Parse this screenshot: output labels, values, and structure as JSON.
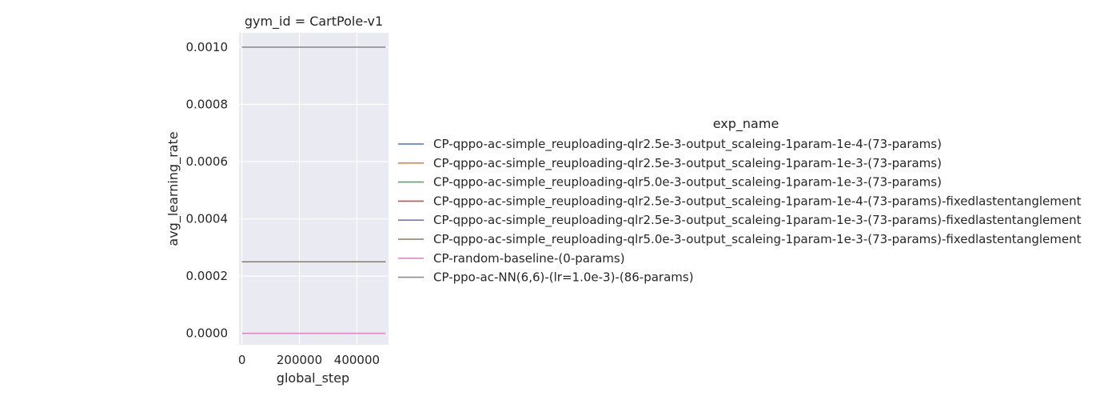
{
  "chart_data": {
    "type": "line",
    "title": "gym_id = CartPole-v1",
    "xlabel": "global_step",
    "ylabel": "avg_learning_rate",
    "xlim": [
      -10000,
      510000
    ],
    "ylim": [
      -4e-05,
      0.00105
    ],
    "xticks": [
      0,
      200000,
      400000
    ],
    "xtick_labels": [
      "0",
      "200000",
      "400000"
    ],
    "yticks": [
      0.0,
      0.0002,
      0.0004,
      0.0006,
      0.0008,
      0.001
    ],
    "ytick_labels": [
      "0.0000",
      "0.0002",
      "0.0004",
      "0.0006",
      "0.0008",
      "0.0010"
    ],
    "grid": true,
    "legend_title": "exp_name",
    "legend_placement": "right",
    "background_color": "#eaeaf2",
    "grid_color": "#ffffff",
    "series": [
      {
        "name": "CP-qppo-ac-simple_reuploading-qlr2.5e-3-output_scaleing-1param-1e-4-(73-params)",
        "color": "#4c72b0",
        "x": [
          0,
          500000
        ],
        "y": [
          0.00025,
          0.00025
        ]
      },
      {
        "name": "CP-qppo-ac-simple_reuploading-qlr2.5e-3-output_scaleing-1param-1e-3-(73-params)",
        "color": "#dd8452",
        "x": [
          0,
          500000
        ],
        "y": [
          0.00025,
          0.00025
        ]
      },
      {
        "name": "CP-qppo-ac-simple_reuploading-qlr5.0e-3-output_scaleing-1param-1e-3-(73-params)",
        "color": "#55a868",
        "x": [
          0,
          500000
        ],
        "y": [
          0.00025,
          0.00025
        ]
      },
      {
        "name": "CP-qppo-ac-simple_reuploading-qlr2.5e-3-output_scaleing-1param-1e-4-(73-params)-fixedlastentanglement",
        "color": "#c44e52",
        "x": [
          0,
          500000
        ],
        "y": [
          0.00025,
          0.00025
        ]
      },
      {
        "name": "CP-qppo-ac-simple_reuploading-qlr2.5e-3-output_scaleing-1param-1e-3-(73-params)-fixedlastentanglement",
        "color": "#8172b3",
        "x": [
          0,
          500000
        ],
        "y": [
          0.00025,
          0.00025
        ]
      },
      {
        "name": "CP-qppo-ac-simple_reuploading-qlr5.0e-3-output_scaleing-1param-1e-3-(73-params)-fixedlastentanglement",
        "color": "#937860",
        "x": [
          0,
          500000
        ],
        "y": [
          0.00025,
          0.00025
        ]
      },
      {
        "name": "CP-random-baseline-(0-params)",
        "color": "#da8bc3",
        "x": [
          0,
          500000
        ],
        "y": [
          0.0,
          0.0
        ]
      },
      {
        "name": "CP-ppo-ac-NN(6,6)-(lr=1.0e-3)-(86-params)",
        "color": "#8c8c8c",
        "x": [
          0,
          500000
        ],
        "y": [
          0.001,
          0.001
        ]
      }
    ]
  }
}
